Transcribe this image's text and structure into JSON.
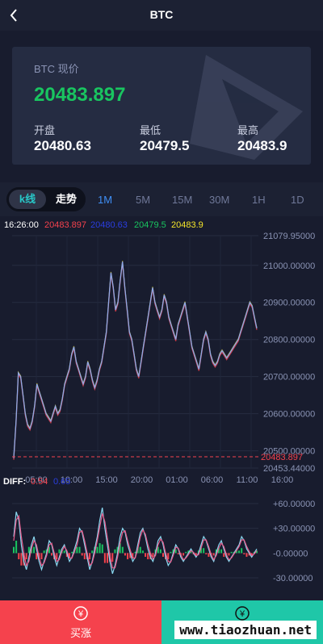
{
  "header": {
    "title": "BTC",
    "back_icon": "chevron-left-icon"
  },
  "summary": {
    "price_label": "BTC 现价",
    "price": "20483.897",
    "open_label": "开盘",
    "open": "20480.63",
    "low_label": "最低",
    "low": "20479.5",
    "high_label": "最高",
    "high": "20483.9"
  },
  "tabs": {
    "kline": "k线",
    "trend": "走势",
    "timeframes": [
      "1M",
      "5M",
      "15M",
      "30M",
      "1H",
      "1D"
    ],
    "active_timeframe": "1M"
  },
  "chart_legend": {
    "time": "16:26:00",
    "v1": "20483.897",
    "v2": "20480.63",
    "v3": "20479.5",
    "v4": "20483.9"
  },
  "macd_legend": {
    "label": "DIFF:",
    "v1": "0.54",
    "v2": "0.65"
  },
  "colors": {
    "up": "#19c560",
    "down": "#f5424d",
    "accent": "#3f8ff6",
    "teal": "#28c7c7",
    "v1": "#f5424d",
    "v2": "#2a3ee0",
    "v3": "#19c560",
    "v4": "#f5e62a"
  },
  "chart_data": [
    {
      "type": "line",
      "title": "",
      "y_ticks": [
        "21079.95000",
        "21000.00000",
        "20900.00000",
        "20800.00000",
        "20700.00000",
        "20600.00000",
        "20500.00000",
        "20453.44000"
      ],
      "ylim": [
        20453.44,
        21079.95
      ],
      "x_ticks": [
        "05:00",
        "10:00",
        "15:00",
        "20:00",
        "01:00",
        "06:00",
        "11:00",
        "16:00"
      ],
      "current_price": "20483.897",
      "current_value": 20483.897,
      "series": [
        {
          "values": [
            20480,
            20580,
            20710,
            20700,
            20650,
            20600,
            20570,
            20560,
            20580,
            20620,
            20680,
            20660,
            20640,
            20620,
            20600,
            20590,
            20580,
            20600,
            20620,
            20600,
            20610,
            20640,
            20680,
            20700,
            20720,
            20760,
            20780,
            20740,
            20720,
            20700,
            20680,
            20700,
            20740,
            20720,
            20690,
            20670,
            20690,
            20720,
            20740,
            20780,
            20820,
            20900,
            20980,
            20940,
            20880,
            20900,
            20960,
            21010,
            20940,
            20880,
            20820,
            20800,
            20760,
            20720,
            20700,
            20740,
            20780,
            20820,
            20860,
            20900,
            20940,
            20900,
            20880,
            20860,
            20880,
            20920,
            20900,
            20860,
            20840,
            20820,
            20800,
            20840,
            20860,
            20880,
            20900,
            20860,
            20820,
            20780,
            20760,
            20740,
            20720,
            20760,
            20800,
            20820,
            20800,
            20760,
            20740,
            20730,
            20740,
            20760,
            20770,
            20760,
            20750,
            20760,
            20770,
            20780,
            20790,
            20800,
            20820,
            20840,
            20860,
            20880,
            20900,
            20890,
            20860,
            20830
          ]
        }
      ]
    },
    {
      "type": "line",
      "title": "",
      "y_ticks": [
        "+60.00000",
        "+30.00000",
        "-0.00000",
        "-30.00000"
      ],
      "ylim": [
        -30,
        60
      ],
      "series": [
        {
          "values": [
            20,
            50,
            40,
            10,
            -10,
            -20,
            -5,
            10,
            20,
            5,
            -10,
            -20,
            -10,
            0,
            15,
            10,
            -5,
            -15,
            -5,
            5,
            10,
            0,
            -10,
            -5,
            5,
            15,
            30,
            25,
            10,
            -5,
            -20,
            -10,
            5,
            20,
            40,
            55,
            30,
            10,
            -10,
            -25,
            -15,
            0,
            20,
            30,
            25,
            10,
            0,
            -10,
            -5,
            10,
            25,
            30,
            20,
            5,
            -5,
            -10,
            0,
            15,
            20,
            10,
            -5,
            -15,
            -10,
            0,
            10,
            5,
            -5,
            -10,
            -5,
            0,
            5,
            0,
            -5,
            0,
            10,
            20,
            15,
            5,
            -5,
            -10,
            0,
            10,
            15,
            5,
            -5,
            -10,
            -5,
            0,
            5,
            10,
            20,
            15,
            5,
            0,
            -5,
            0,
            5
          ]
        },
        {
          "values": [
            15,
            40,
            45,
            20,
            0,
            -15,
            -10,
            5,
            15,
            10,
            -5,
            -15,
            -12,
            -3,
            10,
            12,
            0,
            -10,
            -8,
            2,
            8,
            3,
            -6,
            -6,
            2,
            10,
            25,
            27,
            15,
            0,
            -15,
            -12,
            0,
            15,
            32,
            48,
            38,
            18,
            -3,
            -18,
            -18,
            -5,
            12,
            25,
            27,
            15,
            4,
            -6,
            -6,
            5,
            20,
            28,
            23,
            10,
            0,
            -7,
            -3,
            10,
            17,
            13,
            0,
            -10,
            -11,
            -3,
            7,
            6,
            -2,
            -8,
            -6,
            -2,
            3,
            1,
            -3,
            -2,
            6,
            16,
            16,
            8,
            -2,
            -8,
            -3,
            6,
            12,
            8,
            -2,
            -8,
            -6,
            -1,
            3,
            8,
            16,
            16,
            8,
            2,
            -3,
            -1,
            3
          ]
        }
      ]
    }
  ],
  "bottom": {
    "buy": "买涨",
    "sell": "买跌",
    "watermark": "www.tiaozhuan.net"
  }
}
